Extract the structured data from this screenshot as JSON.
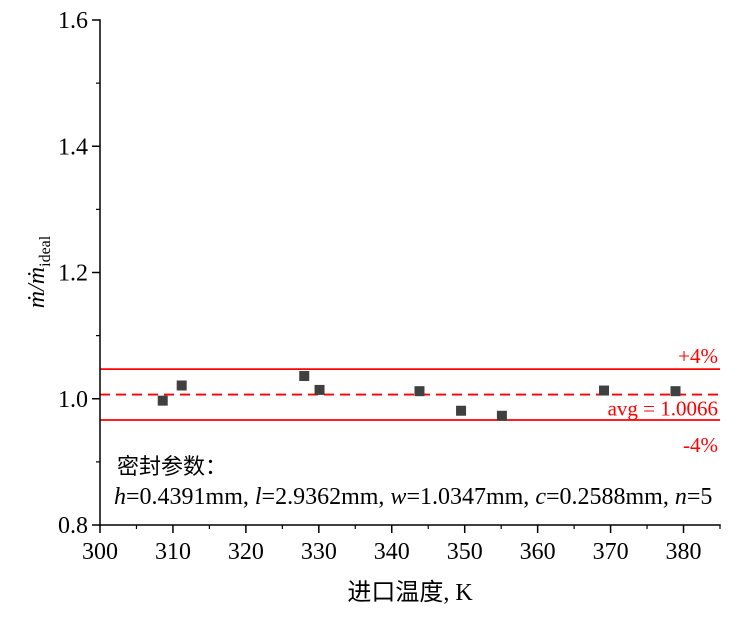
{
  "chart_data": {
    "type": "scatter",
    "xlabel": "进口温度, K",
    "ylabel": {
      "text": "ṁ/ṁ",
      "subscript": "ideal"
    },
    "xlim": [
      300,
      385
    ],
    "ylim": [
      0.8,
      1.6
    ],
    "xticks": [
      300,
      310,
      320,
      330,
      340,
      350,
      360,
      370,
      380
    ],
    "xtick_labels": [
      "300",
      "310",
      "320",
      "330",
      "340",
      "350",
      "360",
      "370",
      "380"
    ],
    "yticks": [
      0.8,
      1.0,
      1.2,
      1.4,
      1.6
    ],
    "ytick_labels": [
      "0.8",
      "1.0",
      "1.2",
      "1.4",
      "1.6"
    ],
    "minor_ticks": true,
    "grid": false,
    "series": [
      {
        "marker": "square",
        "color": "#404040",
        "x": [
          308.6,
          311.2,
          328.0,
          330.1,
          343.8,
          349.5,
          355.1,
          369.1,
          378.9
        ],
        "y": [
          0.997,
          1.021,
          1.036,
          1.014,
          1.012,
          0.981,
          0.973,
          1.013,
          1.012
        ]
      }
    ],
    "reference_lines": [
      {
        "y": 1.0469,
        "style": "solid",
        "color": "#ff0000",
        "label": "+4%"
      },
      {
        "y": 1.0066,
        "style": "dashed",
        "color": "#ff0000",
        "label": "avg = 1.0066"
      },
      {
        "y": 0.9663,
        "style": "solid",
        "color": "#ff0000",
        "label": "-4%"
      }
    ],
    "annotation": {
      "heading": "密封参数：",
      "params": [
        {
          "symbol": "h",
          "value": "=0.4391mm,"
        },
        {
          "symbol": "l",
          "value": "=2.9362mm,"
        },
        {
          "symbol": "w",
          "value": "=1.0347mm,"
        },
        {
          "symbol": "c",
          "value": "=0.2588mm,"
        },
        {
          "symbol": "n",
          "value": "=5"
        }
      ]
    }
  }
}
